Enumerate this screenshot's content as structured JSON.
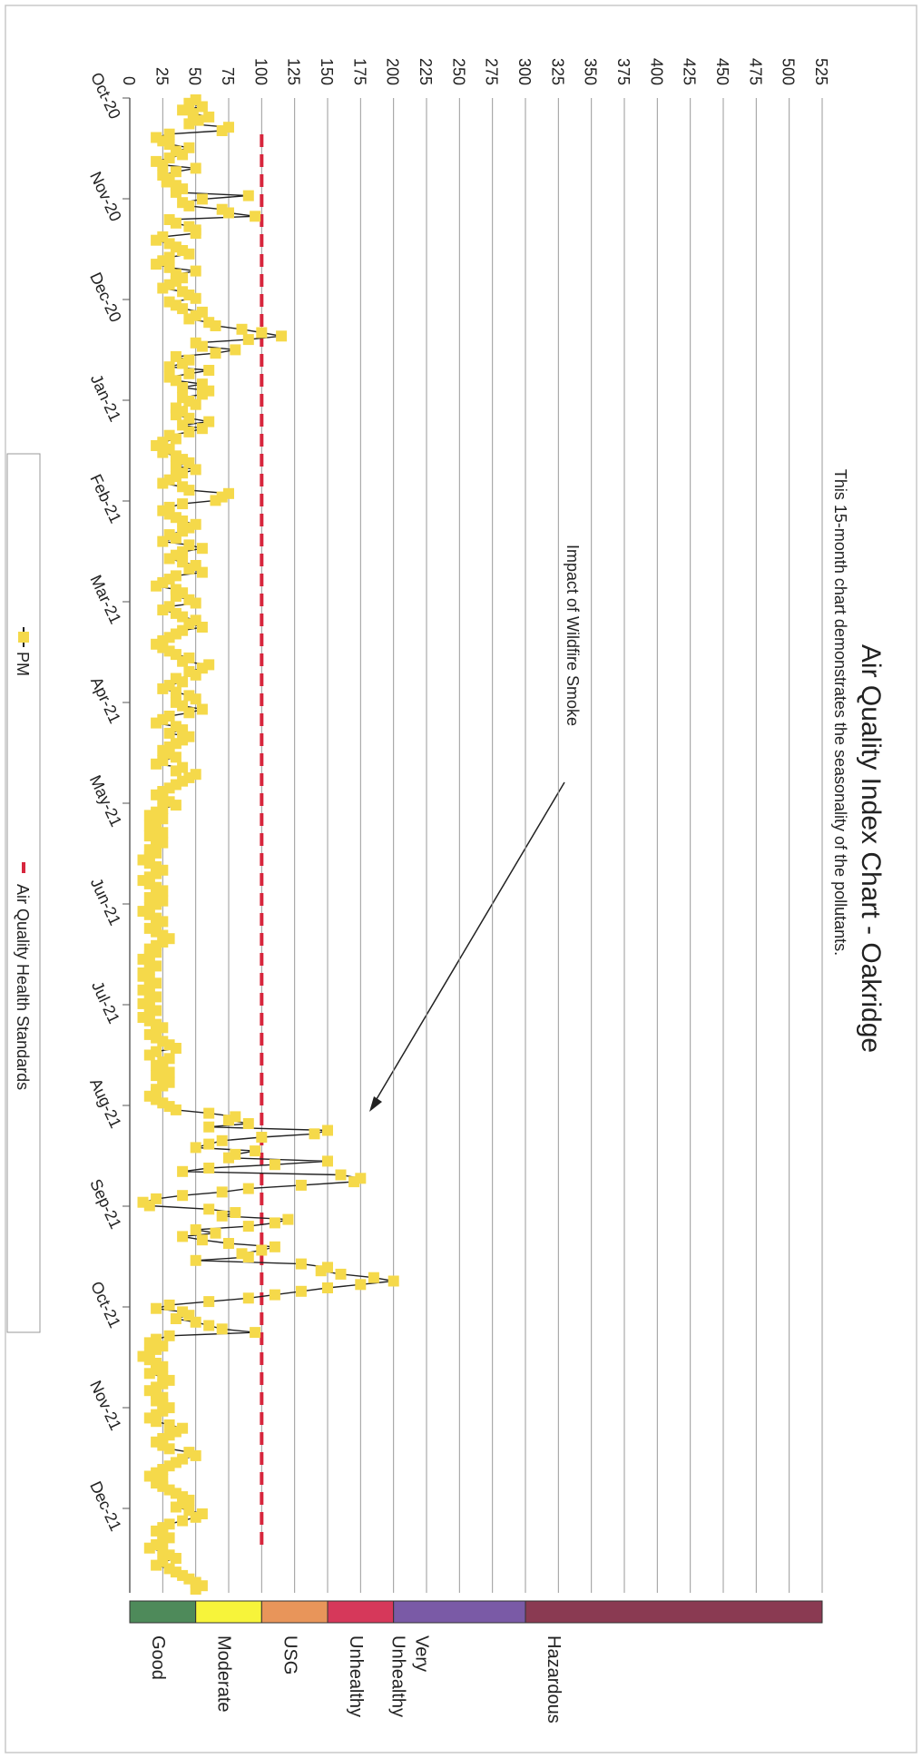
{
  "chart_data": {
    "type": "line",
    "title": "Air Quality Index Chart - Oakridge",
    "subtitle": "This 15-month chart demonstrates the seasonality of the pollutants.",
    "annotation": "Impact of Wildfire Smoke",
    "ylim": [
      0,
      525
    ],
    "y_ticks": [
      "0",
      "25",
      "50",
      "75",
      "100",
      "125",
      "150",
      "175",
      "200",
      "225",
      "250",
      "275",
      "300",
      "325",
      "350",
      "375",
      "400",
      "425",
      "450",
      "475",
      "500",
      "525"
    ],
    "x_ticks": [
      "Oct-20",
      "Nov-20",
      "Dec-20",
      "Jan-21",
      "Feb-21",
      "Mar-21",
      "Apr-21",
      "May-21",
      "Jun-21",
      "Jul-21",
      "Aug-21",
      "Sep-21",
      "Oct-21",
      "Nov-21",
      "Dec-21"
    ],
    "grid": true,
    "legend_position": "bottom",
    "series": [
      {
        "name": "PM",
        "color": "#f5d94a",
        "marker": "square",
        "values": [
          50,
          45,
          55,
          40,
          48,
          60,
          52,
          45,
          75,
          70,
          30,
          20,
          25,
          30,
          45,
          35,
          40,
          30,
          20,
          25,
          50,
          35,
          25,
          30,
          28,
          35,
          40,
          35,
          90,
          55,
          40,
          45,
          70,
          75,
          95,
          30,
          35,
          45,
          50,
          50,
          25,
          20,
          30,
          35,
          40,
          45,
          30,
          25,
          20,
          30,
          50,
          35,
          40,
          35,
          30,
          25,
          40,
          45,
          50,
          30,
          35,
          40,
          55,
          50,
          45,
          60,
          65,
          85,
          100,
          115,
          90,
          50,
          55,
          80,
          65,
          35,
          45,
          40,
          30,
          60,
          45,
          30,
          35,
          55,
          40,
          60,
          55,
          40,
          45,
          50,
          35,
          40,
          35,
          45,
          60,
          40,
          55,
          45,
          30,
          35,
          25,
          20,
          30,
          25,
          35,
          40,
          45,
          35,
          50,
          40,
          35,
          30,
          25,
          40,
          45,
          75,
          70,
          65,
          40,
          30,
          25,
          30,
          35,
          40,
          50,
          45,
          40,
          30,
          35,
          25,
          45,
          55,
          40,
          35,
          30,
          40,
          50,
          45,
          55,
          35,
          30,
          25,
          20,
          35,
          40,
          35,
          45,
          50,
          30,
          25,
          35,
          40,
          50,
          45,
          55,
          40,
          35,
          30,
          25,
          20,
          25,
          30,
          35,
          45,
          40,
          60,
          55,
          45,
          50,
          35,
          40,
          30,
          25,
          35,
          45,
          50,
          35,
          40,
          55,
          45,
          30,
          25,
          20,
          35,
          40,
          30,
          45,
          40,
          35,
          30,
          25,
          30,
          35,
          25,
          20,
          40,
          35,
          50,
          45,
          40,
          35,
          30,
          25,
          20,
          25,
          30,
          35,
          25,
          20,
          15,
          25,
          20,
          15,
          20,
          25,
          15,
          20,
          25,
          20,
          15,
          20,
          15,
          10,
          15,
          20,
          25,
          20,
          15,
          10,
          15,
          20,
          25,
          20,
          15,
          25,
          20,
          15,
          10,
          15,
          20,
          25,
          20,
          15,
          20,
          25,
          30,
          25,
          20,
          15,
          20,
          15,
          10,
          15,
          20,
          15,
          10,
          10,
          15,
          20,
          15,
          10,
          15,
          20,
          15,
          10,
          15,
          20,
          15,
          10,
          15,
          20,
          25,
          20,
          15,
          20,
          25,
          30,
          35,
          20,
          15,
          30,
          25,
          20,
          25,
          30,
          20,
          25,
          30,
          25,
          20,
          20,
          15,
          20,
          25,
          30,
          35,
          60,
          80,
          75,
          90,
          60,
          150,
          140,
          100,
          70,
          60,
          50,
          95,
          80,
          75,
          150,
          110,
          60,
          40,
          160,
          175,
          170,
          130,
          90,
          70,
          40,
          20,
          10,
          15,
          60,
          80,
          70,
          120,
          110,
          90,
          50,
          65,
          40,
          55,
          75,
          110,
          100,
          85,
          90,
          50,
          130,
          150,
          145,
          160,
          185,
          200,
          175,
          150,
          130,
          110,
          90,
          60,
          30,
          20,
          40,
          45,
          35,
          50,
          60,
          70,
          95,
          30,
          20,
          15,
          25,
          20,
          15,
          10,
          15,
          20,
          25,
          20,
          15,
          25,
          30,
          25,
          20,
          15,
          20,
          25,
          20,
          25,
          30,
          25,
          20,
          15,
          20,
          30,
          40,
          35,
          30,
          25,
          20,
          25,
          30,
          45,
          50,
          40,
          35,
          30,
          25,
          20,
          15,
          25,
          20,
          25,
          30,
          35,
          40,
          45,
          40,
          35,
          45,
          55,
          50,
          40,
          30,
          25,
          20,
          25,
          30,
          25,
          20,
          15,
          25,
          30,
          35,
          25,
          20,
          30,
          35,
          40,
          45,
          50,
          55,
          50
        ]
      },
      {
        "name": "Air Quality Health Standards",
        "color": "#d7263d",
        "style": "dashed",
        "value": 100
      }
    ],
    "aqi_bands": [
      {
        "label": "Good",
        "from": 0,
        "to": 50,
        "color": "#4e8a5a"
      },
      {
        "label": "Moderate",
        "from": 50,
        "to": 100,
        "color": "#f7f43a"
      },
      {
        "label": "USG",
        "from": 100,
        "to": 150,
        "color": "#e8955a"
      },
      {
        "label": "Unhealthy",
        "from": 150,
        "to": 200,
        "color": "#d6385a"
      },
      {
        "label": "Very Unhealthy",
        "from": 200,
        "to": 300,
        "color": "#7a5aa6"
      },
      {
        "label": "Hazardous",
        "from": 300,
        "to": 525,
        "color": "#8a3a52"
      }
    ]
  }
}
